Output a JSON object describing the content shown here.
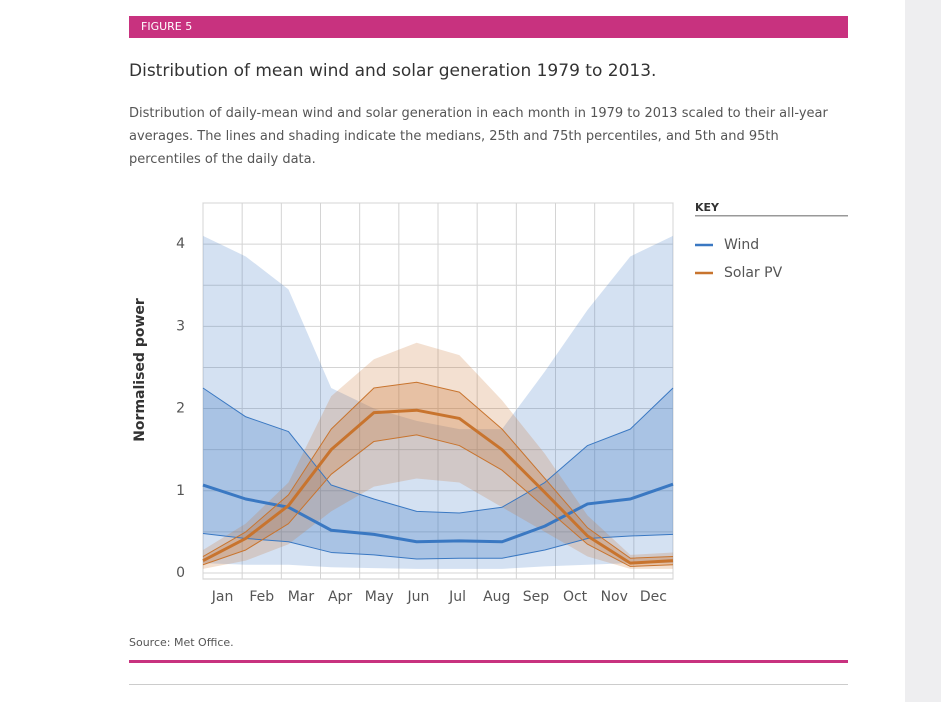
{
  "figure_label": "FIGURE 5",
  "chart_data": {
    "type": "band-line",
    "title": "Distribution of mean wind and solar generation 1979 to 2013.",
    "subtitle": "Distribution of daily-mean wind and solar generation in each month in 1979 to 2013 scaled to their all-year averages. The lines and shading indicate the medians, 25th and 75th percentiles, and 5th and 95th percentiles of the daily data.",
    "ylabel": "Normalised power",
    "legend_title": "KEY",
    "categories": [
      "Jan",
      "Feb",
      "Mar",
      "Apr",
      "May",
      "Jun",
      "Jul",
      "Aug",
      "Sep",
      "Oct",
      "Nov",
      "Dec"
    ],
    "ylim": [
      0,
      4.5
    ],
    "yticks": [
      0,
      1,
      2,
      3,
      4
    ],
    "ygrid": [
      0,
      0.5,
      1,
      1.5,
      2,
      2.5,
      3,
      3.5,
      4,
      4.5
    ],
    "grid": true,
    "series": [
      {
        "name": "Wind",
        "color": "#3a78c2",
        "median": [
          1.07,
          0.9,
          0.8,
          0.52,
          0.47,
          0.38,
          0.39,
          0.38,
          0.57,
          0.84,
          0.9,
          1.08
        ],
        "p25": [
          0.48,
          0.42,
          0.38,
          0.25,
          0.22,
          0.17,
          0.18,
          0.18,
          0.28,
          0.42,
          0.45,
          0.47
        ],
        "p75": [
          2.25,
          1.9,
          1.72,
          1.07,
          0.9,
          0.75,
          0.73,
          0.8,
          1.1,
          1.55,
          1.75,
          2.25
        ],
        "p5": [
          0.12,
          0.1,
          0.1,
          0.07,
          0.06,
          0.05,
          0.05,
          0.05,
          0.08,
          0.1,
          0.12,
          0.12
        ],
        "p95": [
          4.1,
          3.85,
          3.45,
          2.25,
          2.0,
          1.85,
          1.75,
          1.75,
          2.45,
          3.2,
          3.85,
          4.1
        ]
      },
      {
        "name": "Solar PV",
        "color": "#c8742e",
        "median": [
          0.15,
          0.42,
          0.82,
          1.5,
          1.95,
          1.98,
          1.88,
          1.5,
          0.98,
          0.45,
          0.12,
          0.15
        ],
        "p25": [
          0.1,
          0.28,
          0.6,
          1.2,
          1.6,
          1.68,
          1.55,
          1.25,
          0.8,
          0.35,
          0.08,
          0.1
        ],
        "p75": [
          0.2,
          0.5,
          0.95,
          1.75,
          2.25,
          2.32,
          2.2,
          1.75,
          1.15,
          0.55,
          0.18,
          0.2
        ],
        "p5": [
          0.05,
          0.15,
          0.35,
          0.75,
          1.05,
          1.15,
          1.1,
          0.8,
          0.5,
          0.2,
          0.05,
          0.05
        ],
        "p95": [
          0.28,
          0.6,
          1.1,
          2.15,
          2.6,
          2.8,
          2.65,
          2.1,
          1.45,
          0.7,
          0.22,
          0.25
        ]
      }
    ]
  },
  "source": "Source: Met Office."
}
